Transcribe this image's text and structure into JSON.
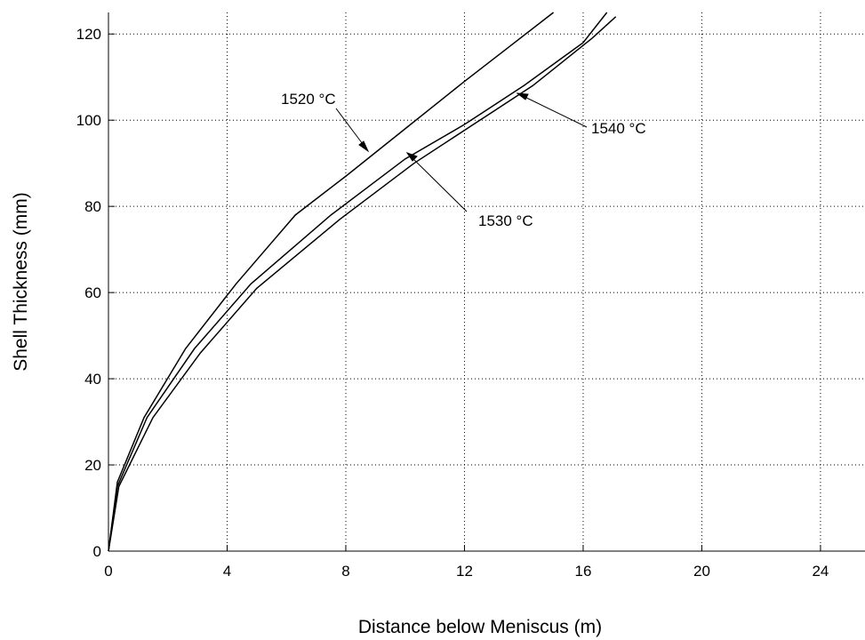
{
  "chart_data": {
    "type": "line",
    "xlabel": "Distance below Meniscus (m)",
    "ylabel": "Shell Thickness (mm)",
    "xlim": [
      0,
      25.5
    ],
    "ylim": [
      0,
      125
    ],
    "xticks": [
      0,
      4,
      8,
      12,
      16,
      20,
      24
    ],
    "yticks": [
      0,
      20,
      40,
      60,
      80,
      100,
      120
    ],
    "grid": true,
    "annotations": [
      "1520 °C",
      "1540 °C",
      "1530 °C"
    ],
    "series": [
      {
        "name": "1520 °C",
        "color": "#000000",
        "x": [
          0,
          0.3,
          1.2,
          2.6,
          4.3,
          6.3,
          8,
          10,
          12,
          13.5,
          15
        ],
        "values": [
          0,
          16,
          31,
          47,
          62,
          78,
          87,
          98,
          109,
          117,
          125
        ]
      },
      {
        "name": "1530 °C",
        "color": "#000000",
        "x": [
          0,
          0.3,
          1.3,
          2.9,
          4.8,
          7.5,
          10,
          12,
          14,
          16,
          16.8
        ],
        "values": [
          0,
          15,
          31,
          47,
          62,
          78,
          91,
          99,
          108,
          118,
          125
        ]
      },
      {
        "name": "1540 °C",
        "color": "#000000",
        "x": [
          0,
          0.35,
          1.5,
          3.1,
          5,
          7.8,
          10.3,
          12.3,
          14.3,
          16.3,
          17.1
        ],
        "values": [
          0,
          15,
          31,
          46,
          61,
          77,
          90,
          99,
          108,
          119,
          124
        ]
      }
    ]
  }
}
